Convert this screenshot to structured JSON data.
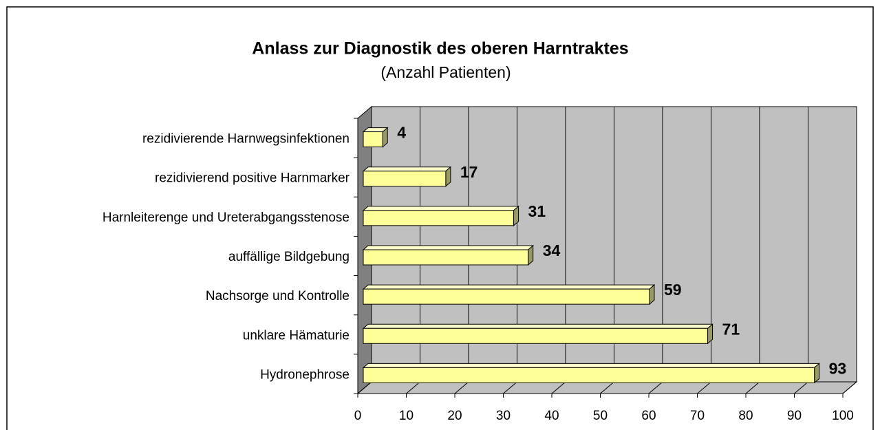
{
  "chart_data": {
    "type": "bar",
    "orientation": "horizontal",
    "title": "Anlass zur Diagnostik des oberen Harntraktes",
    "subtitle": "(Anzahl Patienten)",
    "categories": [
      "rezidivierende Harnwegsinfektionen",
      "rezidivierend positive Harnmarker",
      "Harnleiterenge und Ureterabgangsstenose",
      "auffällige Bildgebung",
      "Nachsorge und Kontrolle",
      "unklare Hämaturie",
      "Hydronephrose"
    ],
    "values": [
      4,
      17,
      31,
      34,
      59,
      71,
      93
    ],
    "color": "#ffff99",
    "xlim": [
      0,
      100
    ],
    "xticks": [
      0,
      10,
      20,
      30,
      40,
      50,
      60,
      70,
      80,
      90,
      100
    ],
    "grid": true
  }
}
